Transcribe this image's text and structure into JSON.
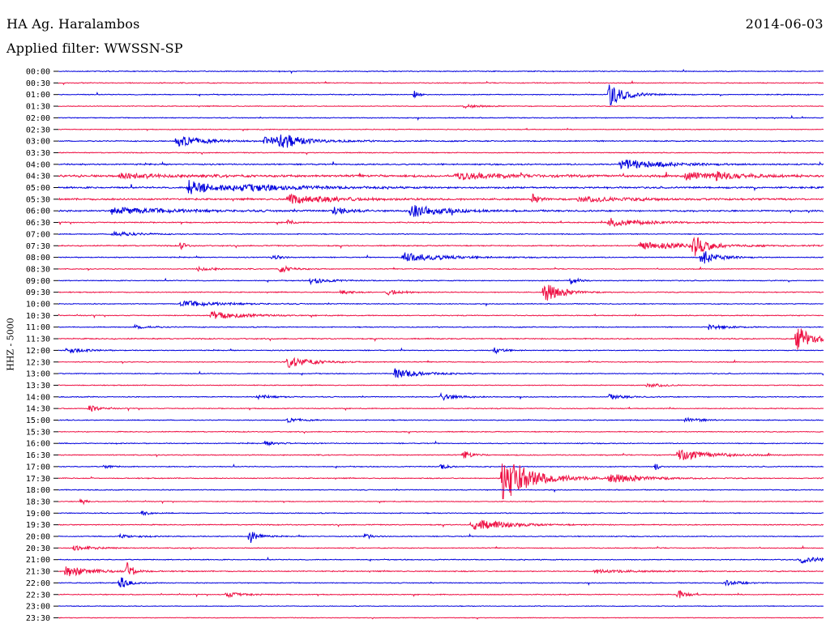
{
  "header": {
    "station": "HA Ag. Haralambos",
    "filter_text": "Applied filter: WWSSN-SP",
    "date": "2014-06-03"
  },
  "colors": {
    "blue": "#0000dd",
    "red": "#ee1144"
  },
  "chart_data": {
    "type": "line",
    "title": "HA Ag. Haralambos",
    "subtitle": "Applied filter: WWSSN-SP",
    "date": "2014-06-03",
    "ylabel": "HHZ - 5000",
    "xlabel": "",
    "grid": false,
    "series": [
      {
        "name": "",
        "color": "#0000dd"
      },
      {
        "name": "",
        "color": "#ee1144"
      }
    ],
    "time_labels": [
      "00:00",
      "00:30",
      "01:00",
      "01:30",
      "02:00",
      "02:30",
      "03:00",
      "03:30",
      "04:00",
      "04:30",
      "05:00",
      "05:30",
      "06:00",
      "06:30",
      "07:00",
      "07:30",
      "08:00",
      "08:30",
      "09:00",
      "09:30",
      "10:00",
      "10:30",
      "11:00",
      "11:30",
      "12:00",
      "12:30",
      "13:00",
      "13:30",
      "14:00",
      "14:30",
      "15:00",
      "15:30",
      "16:00",
      "16:30",
      "17:00",
      "17:30",
      "18:00",
      "18:30",
      "19:00",
      "19:30",
      "20:00",
      "20:30",
      "21:00",
      "21:30",
      "22:00",
      "22:30",
      "23:00",
      "23:30"
    ],
    "noise": [
      0.08,
      0.08,
      0.08,
      0.07,
      0.08,
      0.07,
      0.1,
      0.08,
      0.12,
      0.2,
      0.15,
      0.15,
      0.14,
      0.1,
      0.08,
      0.1,
      0.08,
      0.08,
      0.08,
      0.08,
      0.08,
      0.08,
      0.08,
      0.1,
      0.08,
      0.08,
      0.08,
      0.07,
      0.08,
      0.08,
      0.08,
      0.08,
      0.08,
      0.09,
      0.08,
      0.08,
      0.08,
      0.07,
      0.08,
      0.09,
      0.08,
      0.08,
      0.08,
      0.09,
      0.08,
      0.08,
      0.06,
      0.06
    ],
    "events": [
      {
        "trace": 2,
        "pos": 0.72,
        "amp": 2.5,
        "dur": 0.02
      },
      {
        "trace": 2,
        "pos": 0.465,
        "amp": 1.1,
        "dur": 0.005
      },
      {
        "trace": 3,
        "pos": 0.53,
        "amp": 0.4,
        "dur": 0.02
      },
      {
        "trace": 6,
        "pos": 0.155,
        "amp": 1.1,
        "dur": 0.035
      },
      {
        "trace": 6,
        "pos": 0.27,
        "amp": 1.0,
        "dur": 0.05
      },
      {
        "trace": 6,
        "pos": 0.29,
        "amp": 1.6,
        "dur": 0.015
      },
      {
        "trace": 8,
        "pos": 0.735,
        "amp": 1.2,
        "dur": 0.05
      },
      {
        "trace": 9,
        "pos": 0.08,
        "amp": 0.5,
        "dur": 0.06
      },
      {
        "trace": 9,
        "pos": 0.52,
        "amp": 0.8,
        "dur": 0.05
      },
      {
        "trace": 9,
        "pos": 0.82,
        "amp": 0.9,
        "dur": 0.04
      },
      {
        "trace": 9,
        "pos": 0.86,
        "amp": 0.6,
        "dur": 0.03
      },
      {
        "trace": 10,
        "pos": 0.17,
        "amp": 1.6,
        "dur": 0.04
      },
      {
        "trace": 10,
        "pos": 0.24,
        "amp": 0.6,
        "dur": 0.08
      },
      {
        "trace": 11,
        "pos": 0.3,
        "amp": 1.0,
        "dur": 0.06
      },
      {
        "trace": 11,
        "pos": 0.62,
        "amp": 1.0,
        "dur": 0.01
      },
      {
        "trace": 11,
        "pos": 0.68,
        "amp": 0.6,
        "dur": 0.06
      },
      {
        "trace": 12,
        "pos": 0.07,
        "amp": 0.8,
        "dur": 0.08
      },
      {
        "trace": 12,
        "pos": 0.36,
        "amp": 0.8,
        "dur": 0.02
      },
      {
        "trace": 12,
        "pos": 0.46,
        "amp": 1.4,
        "dur": 0.04
      },
      {
        "trace": 13,
        "pos": 0.3,
        "amp": 0.8,
        "dur": 0.005
      },
      {
        "trace": 13,
        "pos": 0.72,
        "amp": 1.0,
        "dur": 0.04
      },
      {
        "trace": 14,
        "pos": 0.07,
        "amp": 0.6,
        "dur": 0.03
      },
      {
        "trace": 15,
        "pos": 0.16,
        "amp": 1.2,
        "dur": 0.005
      },
      {
        "trace": 15,
        "pos": 0.76,
        "amp": 0.8,
        "dur": 0.07
      },
      {
        "trace": 15,
        "pos": 0.83,
        "amp": 2.2,
        "dur": 0.015
      },
      {
        "trace": 16,
        "pos": 0.28,
        "amp": 0.7,
        "dur": 0.01
      },
      {
        "trace": 16,
        "pos": 0.45,
        "amp": 1.0,
        "dur": 0.05
      },
      {
        "trace": 16,
        "pos": 0.84,
        "amp": 1.8,
        "dur": 0.02
      },
      {
        "trace": 17,
        "pos": 0.18,
        "amp": 0.5,
        "dur": 0.02
      },
      {
        "trace": 17,
        "pos": 0.29,
        "amp": 0.8,
        "dur": 0.015
      },
      {
        "trace": 18,
        "pos": 0.33,
        "amp": 0.8,
        "dur": 0.02
      },
      {
        "trace": 18,
        "pos": 0.67,
        "amp": 0.8,
        "dur": 0.01
      },
      {
        "trace": 19,
        "pos": 0.37,
        "amp": 0.6,
        "dur": 0.01
      },
      {
        "trace": 19,
        "pos": 0.43,
        "amp": 0.6,
        "dur": 0.02
      },
      {
        "trace": 19,
        "pos": 0.635,
        "amp": 2.4,
        "dur": 0.02
      },
      {
        "trace": 20,
        "pos": 0.16,
        "amp": 0.7,
        "dur": 0.05
      },
      {
        "trace": 21,
        "pos": 0.2,
        "amp": 0.9,
        "dur": 0.04
      },
      {
        "trace": 22,
        "pos": 0.1,
        "amp": 0.4,
        "dur": 0.02
      },
      {
        "trace": 22,
        "pos": 0.85,
        "amp": 0.6,
        "dur": 0.02
      },
      {
        "trace": 23,
        "pos": 0.97,
        "amp": 1.2,
        "dur": 0.03
      },
      {
        "trace": 23,
        "pos": 0.965,
        "amp": 2.8,
        "dur": 0.008
      },
      {
        "trace": 24,
        "pos": 0.01,
        "amp": 0.7,
        "dur": 0.02
      },
      {
        "trace": 24,
        "pos": 0.57,
        "amp": 0.8,
        "dur": 0.01
      },
      {
        "trace": 25,
        "pos": 0.3,
        "amp": 1.2,
        "dur": 0.03
      },
      {
        "trace": 26,
        "pos": 0.44,
        "amp": 1.1,
        "dur": 0.03
      },
      {
        "trace": 27,
        "pos": 0.77,
        "amp": 0.5,
        "dur": 0.02
      },
      {
        "trace": 28,
        "pos": 0.26,
        "amp": 0.5,
        "dur": 0.02
      },
      {
        "trace": 28,
        "pos": 0.5,
        "amp": 0.8,
        "dur": 0.02
      },
      {
        "trace": 28,
        "pos": 0.72,
        "amp": 0.5,
        "dur": 0.02
      },
      {
        "trace": 29,
        "pos": 0.04,
        "amp": 1.0,
        "dur": 0.01
      },
      {
        "trace": 30,
        "pos": 0.3,
        "amp": 0.4,
        "dur": 0.02
      },
      {
        "trace": 30,
        "pos": 0.82,
        "amp": 0.5,
        "dur": 0.02
      },
      {
        "trace": 32,
        "pos": 0.27,
        "amp": 0.4,
        "dur": 0.02
      },
      {
        "trace": 33,
        "pos": 0.53,
        "amp": 0.9,
        "dur": 0.01
      },
      {
        "trace": 33,
        "pos": 0.81,
        "amp": 1.2,
        "dur": 0.04
      },
      {
        "trace": 34,
        "pos": 0.06,
        "amp": 0.4,
        "dur": 0.01
      },
      {
        "trace": 34,
        "pos": 0.5,
        "amp": 0.6,
        "dur": 0.01
      },
      {
        "trace": 34,
        "pos": 0.78,
        "amp": 1.0,
        "dur": 0.005
      },
      {
        "trace": 35,
        "pos": 0.59,
        "amp": 3.5,
        "dur": 0.04
      },
      {
        "trace": 35,
        "pos": 0.58,
        "amp": 6.0,
        "dur": 0.008
      },
      {
        "trace": 35,
        "pos": 0.72,
        "amp": 1.0,
        "dur": 0.04
      },
      {
        "trace": 37,
        "pos": 0.03,
        "amp": 1.0,
        "dur": 0.005
      },
      {
        "trace": 38,
        "pos": 0.11,
        "amp": 0.5,
        "dur": 0.01
      },
      {
        "trace": 39,
        "pos": 0.54,
        "amp": 1.4,
        "dur": 0.04
      },
      {
        "trace": 40,
        "pos": 0.08,
        "amp": 0.4,
        "dur": 0.02
      },
      {
        "trace": 40,
        "pos": 0.25,
        "amp": 1.6,
        "dur": 0.01
      },
      {
        "trace": 40,
        "pos": 0.4,
        "amp": 0.6,
        "dur": 0.01
      },
      {
        "trace": 41,
        "pos": 0.02,
        "amp": 0.5,
        "dur": 0.03
      },
      {
        "trace": 42,
        "pos": 0.97,
        "amp": 0.7,
        "dur": 0.03
      },
      {
        "trace": 43,
        "pos": 0.01,
        "amp": 1.2,
        "dur": 0.03
      },
      {
        "trace": 43,
        "pos": 0.09,
        "amp": 2.0,
        "dur": 0.008
      },
      {
        "trace": 43,
        "pos": 0.7,
        "amp": 0.4,
        "dur": 0.05
      },
      {
        "trace": 44,
        "pos": 0.08,
        "amp": 1.6,
        "dur": 0.01
      },
      {
        "trace": 44,
        "pos": 0.87,
        "amp": 0.6,
        "dur": 0.02
      },
      {
        "trace": 45,
        "pos": 0.22,
        "amp": 0.6,
        "dur": 0.02
      },
      {
        "trace": 45,
        "pos": 0.81,
        "amp": 1.0,
        "dur": 0.01
      }
    ]
  }
}
